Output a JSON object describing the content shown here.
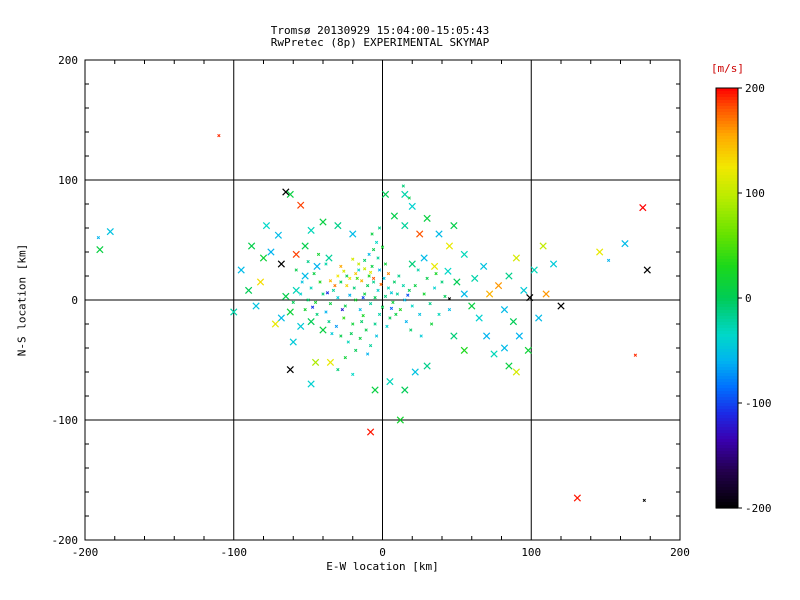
{
  "header": {
    "title": "Tromsø 20130929 15:04:00-15:05:43",
    "subtitle": "RwPretec (8p) EXPERIMENTAL SKYMAP"
  },
  "chart_data": {
    "type": "scatter",
    "title": "Tromsø 20130929 15:04:00-15:05:43",
    "subtitle": "RwPretec (8p) EXPERIMENTAL SKYMAP",
    "xlabel": "E-W location [km]",
    "ylabel": "N-S location [km]",
    "xlim": [
      -200,
      200
    ],
    "ylim": [
      -200,
      200
    ],
    "xticks": [
      -200,
      -100,
      0,
      100,
      200
    ],
    "yticks": [
      -200,
      -100,
      0,
      100,
      200
    ],
    "grid": true,
    "grid_lines_at": [
      -100,
      0,
      100
    ],
    "marker": "x",
    "axis_color": "#000000",
    "background": "#ffffff",
    "colorbar": {
      "label": "[m/s]",
      "label_color": "#cc0000",
      "min": -200,
      "max": 200,
      "ticks": [
        200,
        100,
        0,
        -100,
        -200
      ],
      "position": "right",
      "stops": [
        [
          -200,
          "#000000"
        ],
        [
          -165,
          "#23004d"
        ],
        [
          -135,
          "#3a00b0"
        ],
        [
          -110,
          "#1b2ae6"
        ],
        [
          -85,
          "#0070ff"
        ],
        [
          -60,
          "#00b4f0"
        ],
        [
          -35,
          "#00d8c8"
        ],
        [
          -15,
          "#00cf8a"
        ],
        [
          0,
          "#00cc55"
        ],
        [
          30,
          "#1bd81b"
        ],
        [
          60,
          "#66e300"
        ],
        [
          95,
          "#b8ec00"
        ],
        [
          125,
          "#f2e800"
        ],
        [
          155,
          "#ffa800"
        ],
        [
          180,
          "#ff5500"
        ],
        [
          200,
          "#ff0000"
        ]
      ]
    },
    "points_format": [
      "x_km",
      "y_km",
      "velocity_ms",
      "marker_size_flag"
    ],
    "points": [
      [
        -5,
        2,
        0,
        0
      ],
      [
        -8,
        -3,
        -20,
        0
      ],
      [
        -12,
        5,
        10,
        0
      ],
      [
        -3,
        8,
        -40,
        0
      ],
      [
        0,
        -6,
        5,
        0
      ],
      [
        2,
        3,
        -10,
        0
      ],
      [
        -18,
        0,
        20,
        0
      ],
      [
        -15,
        -8,
        -55,
        0
      ],
      [
        -10,
        12,
        0,
        0
      ],
      [
        -6,
        15,
        -15,
        0
      ],
      [
        4,
        10,
        -30,
        0
      ],
      [
        7,
        -2,
        15,
        0
      ],
      [
        -22,
        4,
        -60,
        0
      ],
      [
        -25,
        -5,
        5,
        0
      ],
      [
        -2,
        -12,
        -25,
        0
      ],
      [
        5,
        -15,
        0,
        0
      ],
      [
        -30,
        2,
        -45,
        0
      ],
      [
        -35,
        -3,
        10,
        0
      ],
      [
        -14,
        -18,
        -5,
        0
      ],
      [
        -9,
        20,
        25,
        0
      ],
      [
        1,
        18,
        -50,
        0
      ],
      [
        10,
        5,
        -20,
        0
      ],
      [
        12,
        -8,
        30,
        0
      ],
      [
        -40,
        5,
        -10,
        0
      ],
      [
        -38,
        -10,
        -60,
        0
      ],
      [
        -28,
        15,
        0,
        0
      ],
      [
        -20,
        -20,
        15,
        0
      ],
      [
        -16,
        25,
        -35,
        0
      ],
      [
        8,
        15,
        -5,
        0
      ],
      [
        15,
        0,
        -55,
        0
      ],
      [
        -45,
        -2,
        20,
        0
      ],
      [
        -5,
        -20,
        -15,
        0
      ],
      [
        -11,
        -25,
        5,
        0
      ],
      [
        3,
        -22,
        -40,
        0
      ],
      [
        -33,
        8,
        -20,
        0
      ],
      [
        -26,
        -15,
        40,
        0
      ],
      [
        18,
        8,
        0,
        0
      ],
      [
        -48,
        10,
        -30,
        0
      ],
      [
        -7,
        28,
        10,
        0
      ],
      [
        -2,
        25,
        -60,
        0
      ],
      [
        -19,
        10,
        -10,
        0
      ],
      [
        -13,
        -13,
        25,
        0
      ],
      [
        6,
        6,
        -45,
        0
      ],
      [
        -24,
        20,
        5,
        0
      ],
      [
        -36,
        -18,
        -15,
        0
      ],
      [
        -42,
        15,
        30,
        0
      ],
      [
        -50,
        0,
        -5,
        0
      ],
      [
        -4,
        -30,
        -50,
        0
      ],
      [
        9,
        -12,
        10,
        0
      ],
      [
        14,
        12,
        -25,
        0
      ],
      [
        -21,
        -28,
        0,
        0
      ],
      [
        -31,
        -22,
        -70,
        0
      ],
      [
        -17,
        18,
        45,
        0
      ],
      [
        -44,
        -12,
        -10,
        0
      ],
      [
        2,
        30,
        15,
        0
      ],
      [
        -55,
        5,
        -40,
        0
      ],
      [
        -52,
        -8,
        20,
        0
      ],
      [
        11,
        20,
        -15,
        0
      ],
      [
        16,
        -18,
        -60,
        0
      ],
      [
        -60,
        -2,
        0,
        0
      ],
      [
        -3,
        35,
        -20,
        0
      ],
      [
        -6,
        42,
        5,
        0
      ],
      [
        -4,
        48,
        -35,
        0
      ],
      [
        -7,
        55,
        10,
        0
      ],
      [
        -2,
        60,
        -15,
        0
      ],
      [
        -9,
        38,
        -55,
        0
      ],
      [
        0,
        44,
        20,
        0
      ],
      [
        -12,
        33,
        -5,
        0
      ],
      [
        -23,
        -35,
        -30,
        0
      ],
      [
        -15,
        -32,
        10,
        0
      ],
      [
        -8,
        -38,
        -20,
        0
      ],
      [
        -28,
        -30,
        5,
        0
      ],
      [
        -34,
        -28,
        -45,
        0
      ],
      [
        -18,
        -42,
        0,
        0
      ],
      [
        -10,
        -45,
        -60,
        0
      ],
      [
        -25,
        -48,
        15,
        0
      ],
      [
        -30,
        -58,
        -10,
        0
      ],
      [
        -20,
        -62,
        -35,
        0
      ],
      [
        -38,
        30,
        -25,
        0
      ],
      [
        -46,
        22,
        10,
        0
      ],
      [
        -54,
        15,
        -50,
        0
      ],
      [
        -58,
        25,
        5,
        0
      ],
      [
        -50,
        32,
        -15,
        0
      ],
      [
        -43,
        38,
        20,
        0
      ],
      [
        20,
        -5,
        -35,
        0
      ],
      [
        22,
        12,
        10,
        0
      ],
      [
        25,
        -12,
        -50,
        0
      ],
      [
        28,
        5,
        20,
        0
      ],
      [
        32,
        -3,
        -15,
        0
      ],
      [
        35,
        10,
        -40,
        0
      ],
      [
        30,
        18,
        5,
        0
      ],
      [
        24,
        25,
        -25,
        0
      ],
      [
        19,
        -25,
        -5,
        0
      ],
      [
        26,
        -30,
        -45,
        0
      ],
      [
        33,
        -20,
        15,
        0
      ],
      [
        38,
        -12,
        -30,
        0
      ],
      [
        42,
        3,
        0,
        0
      ],
      [
        45,
        -8,
        -55,
        0
      ],
      [
        40,
        15,
        -10,
        0
      ],
      [
        36,
        22,
        25,
        0
      ],
      [
        14,
        95,
        -10,
        0
      ],
      [
        18,
        85,
        5,
        0
      ],
      [
        45,
        1,
        -200,
        0
      ],
      [
        -22,
        18,
        120,
        0
      ],
      [
        -18,
        22,
        140,
        0
      ],
      [
        -26,
        24,
        110,
        0
      ],
      [
        -14,
        16,
        150,
        0
      ],
      [
        -30,
        20,
        125,
        0
      ],
      [
        -12,
        26,
        105,
        0
      ],
      [
        -24,
        12,
        135,
        0
      ],
      [
        -8,
        23,
        115,
        0
      ],
      [
        -35,
        16,
        145,
        0
      ],
      [
        -16,
        30,
        100,
        0
      ],
      [
        -28,
        28,
        155,
        0
      ],
      [
        -20,
        34,
        110,
        0
      ],
      [
        -6,
        18,
        180,
        0
      ],
      [
        -32,
        12,
        170,
        0
      ],
      [
        4,
        22,
        165,
        0
      ],
      [
        -1,
        13,
        175,
        0
      ],
      [
        -13,
        2,
        -100,
        0
      ],
      [
        -27,
        -8,
        -120,
        0
      ],
      [
        6,
        -7,
        -90,
        0
      ],
      [
        -37,
        6,
        -110,
        0
      ],
      [
        17,
        4,
        -95,
        0
      ],
      [
        -47,
        -6,
        -105,
        0
      ],
      [
        -52,
        20,
        -55,
        1
      ],
      [
        -48,
        -18,
        0,
        1
      ],
      [
        -58,
        8,
        -30,
        1
      ],
      [
        -62,
        -10,
        15,
        1
      ],
      [
        -44,
        28,
        -60,
        1
      ],
      [
        -40,
        -25,
        10,
        1
      ],
      [
        -36,
        35,
        -20,
        1
      ],
      [
        -55,
        -22,
        -45,
        1
      ],
      [
        -65,
        3,
        5,
        1
      ],
      [
        -68,
        -15,
        -55,
        1
      ],
      [
        20,
        30,
        -10,
        1
      ],
      [
        28,
        35,
        -55,
        1
      ],
      [
        35,
        28,
        120,
        1
      ],
      [
        44,
        24,
        -35,
        1
      ],
      [
        50,
        15,
        0,
        1
      ],
      [
        55,
        5,
        -55,
        1
      ],
      [
        60,
        -5,
        10,
        1
      ],
      [
        65,
        -15,
        -40,
        1
      ],
      [
        48,
        -30,
        -10,
        1
      ],
      [
        55,
        -42,
        30,
        1
      ],
      [
        70,
        -30,
        -60,
        1
      ],
      [
        62,
        18,
        -25,
        1
      ],
      [
        72,
        5,
        150,
        1
      ],
      [
        68,
        28,
        -50,
        1
      ],
      [
        78,
        12,
        160,
        1
      ],
      [
        82,
        -8,
        -55,
        1
      ],
      [
        88,
        -18,
        0,
        1
      ],
      [
        75,
        -45,
        -30,
        1
      ],
      [
        92,
        -30,
        -60,
        1
      ],
      [
        85,
        20,
        -15,
        1
      ],
      [
        95,
        8,
        -45,
        1
      ],
      [
        90,
        35,
        110,
        1
      ],
      [
        99,
        2,
        -200,
        1
      ],
      [
        85,
        -55,
        10,
        1
      ],
      [
        -65,
        90,
        -200,
        1
      ],
      [
        -62,
        88,
        10,
        1
      ],
      [
        -55,
        79,
        185,
        1
      ],
      [
        -70,
        54,
        -55,
        1
      ],
      [
        -75,
        40,
        -60,
        1
      ],
      [
        -80,
        35,
        15,
        1
      ],
      [
        -68,
        30,
        -200,
        1
      ],
      [
        -85,
        -5,
        -50,
        1
      ],
      [
        -90,
        8,
        0,
        1
      ],
      [
        -72,
        -20,
        120,
        1
      ],
      [
        -60,
        -35,
        -45,
        1
      ],
      [
        -62,
        -58,
        -200,
        1
      ],
      [
        -45,
        -52,
        90,
        1
      ],
      [
        -35,
        -52,
        120,
        1
      ],
      [
        -52,
        45,
        5,
        1
      ],
      [
        -48,
        58,
        -30,
        1
      ],
      [
        -40,
        65,
        10,
        1
      ],
      [
        -30,
        62,
        -15,
        1
      ],
      [
        -20,
        55,
        -55,
        1
      ],
      [
        -58,
        38,
        185,
        1
      ],
      [
        -78,
        62,
        -35,
        1
      ],
      [
        -88,
        45,
        5,
        1
      ],
      [
        -95,
        25,
        -55,
        1
      ],
      [
        -82,
        15,
        130,
        1
      ],
      [
        -100,
        -10,
        -25,
        1
      ],
      [
        12,
        -100,
        20,
        1
      ],
      [
        15,
        -75,
        0,
        1
      ],
      [
        -8,
        -110,
        195,
        1
      ],
      [
        5,
        -68,
        -30,
        1
      ],
      [
        22,
        -60,
        -50,
        1
      ],
      [
        30,
        -55,
        -15,
        1
      ],
      [
        -5,
        -75,
        10,
        1
      ],
      [
        -48,
        -70,
        -40,
        1
      ],
      [
        25,
        55,
        180,
        1
      ],
      [
        15,
        62,
        -20,
        1
      ],
      [
        8,
        70,
        5,
        1
      ],
      [
        20,
        78,
        -40,
        1
      ],
      [
        30,
        68,
        10,
        1
      ],
      [
        2,
        88,
        0,
        1
      ],
      [
        15,
        88,
        -25,
        1
      ],
      [
        38,
        55,
        -55,
        1
      ],
      [
        45,
        45,
        120,
        1
      ],
      [
        55,
        38,
        -30,
        1
      ],
      [
        48,
        62,
        5,
        1
      ],
      [
        105,
        -15,
        -55,
        1
      ],
      [
        110,
        5,
        160,
        1
      ],
      [
        102,
        25,
        -30,
        1
      ],
      [
        98,
        -42,
        15,
        1
      ],
      [
        90,
        -60,
        110,
        1
      ],
      [
        82,
        -40,
        -55,
        1
      ],
      [
        120,
        -5,
        -200,
        1
      ],
      [
        115,
        30,
        -45,
        1
      ],
      [
        108,
        45,
        100,
        1
      ],
      [
        -110,
        137,
        190,
        0
      ],
      [
        -183,
        57,
        -50,
        1
      ],
      [
        -191,
        52,
        -60,
        0
      ],
      [
        -190,
        42,
        10,
        1
      ],
      [
        175,
        77,
        200,
        1
      ],
      [
        178,
        25,
        -200,
        1
      ],
      [
        163,
        47,
        -55,
        1
      ],
      [
        146,
        40,
        120,
        1
      ],
      [
        152,
        33,
        -60,
        0
      ],
      [
        131,
        -165,
        195,
        1
      ],
      [
        176,
        -167,
        -200,
        0
      ],
      [
        170,
        -46,
        190,
        0
      ]
    ]
  }
}
